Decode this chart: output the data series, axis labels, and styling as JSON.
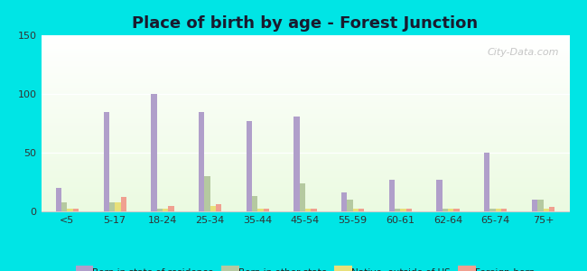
{
  "title": "Place of birth by age - Forest Junction",
  "categories": [
    "<5",
    "5-17",
    "18-24",
    "25-34",
    "35-44",
    "45-54",
    "55-59",
    "60-61",
    "62-64",
    "65-74",
    "75+"
  ],
  "series": {
    "Born in state of residence": [
      20,
      85,
      100,
      85,
      77,
      81,
      16,
      27,
      27,
      50,
      10
    ],
    "Born in other state": [
      8,
      8,
      2,
      30,
      13,
      24,
      10,
      2,
      2,
      2,
      10
    ],
    "Native, outside of US": [
      2,
      8,
      2,
      5,
      2,
      2,
      2,
      2,
      2,
      2,
      2
    ],
    "Foreign-born": [
      2,
      12,
      5,
      6,
      2,
      2,
      2,
      2,
      2,
      2,
      4
    ]
  },
  "colors": {
    "Born in state of residence": "#b09fca",
    "Born in other state": "#b5c9a0",
    "Native, outside of US": "#e8e07a",
    "Foreign-born": "#f0a090"
  },
  "ylim": [
    0,
    150
  ],
  "yticks": [
    0,
    50,
    100,
    150
  ],
  "bg_outer": "#00e5e5",
  "bar_width": 0.12,
  "watermark": "City-Data.com",
  "title_color": "#1a1a2e",
  "title_fontsize": 13
}
